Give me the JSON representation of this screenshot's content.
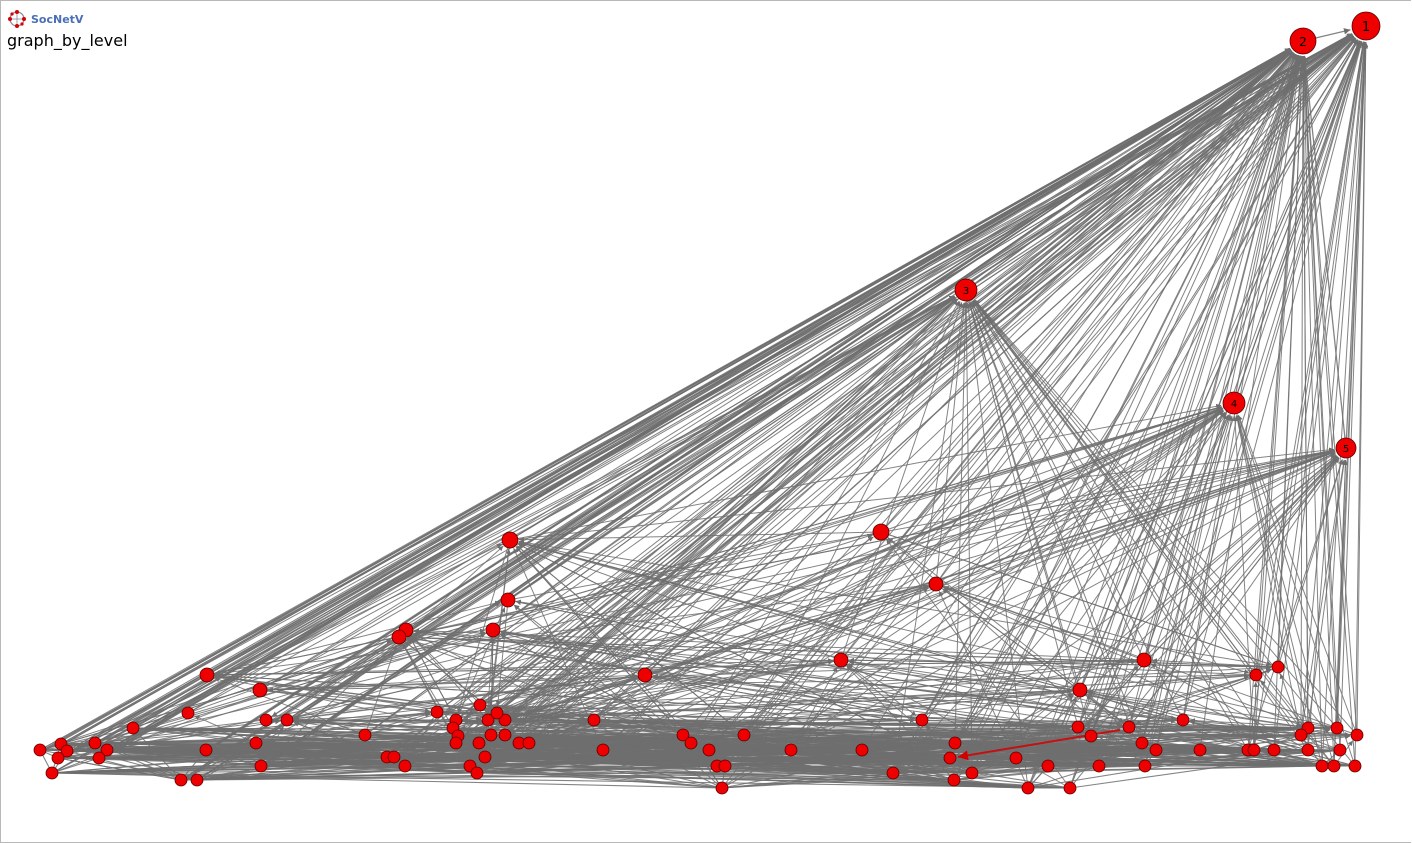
{
  "app": {
    "logo_text": "SocNetV",
    "logo_icon": "socnetv-logo-icon"
  },
  "graph": {
    "title": "graph_by_level",
    "colors": {
      "edge": "#6e6e6e",
      "highlight_edge": "#d40000",
      "node_fill": "#ee0000",
      "node_stroke": "#5a0000",
      "label": "#000000"
    },
    "top_nodes": [
      {
        "id": "1",
        "label": "1"
      },
      {
        "id": "2",
        "label": "2"
      },
      {
        "id": "3",
        "label": "3"
      },
      {
        "id": "4",
        "label": "4"
      },
      {
        "id": "5",
        "label": "5"
      }
    ],
    "edges_drawn": "many directed links converging on nodes 1 and 2"
  }
}
